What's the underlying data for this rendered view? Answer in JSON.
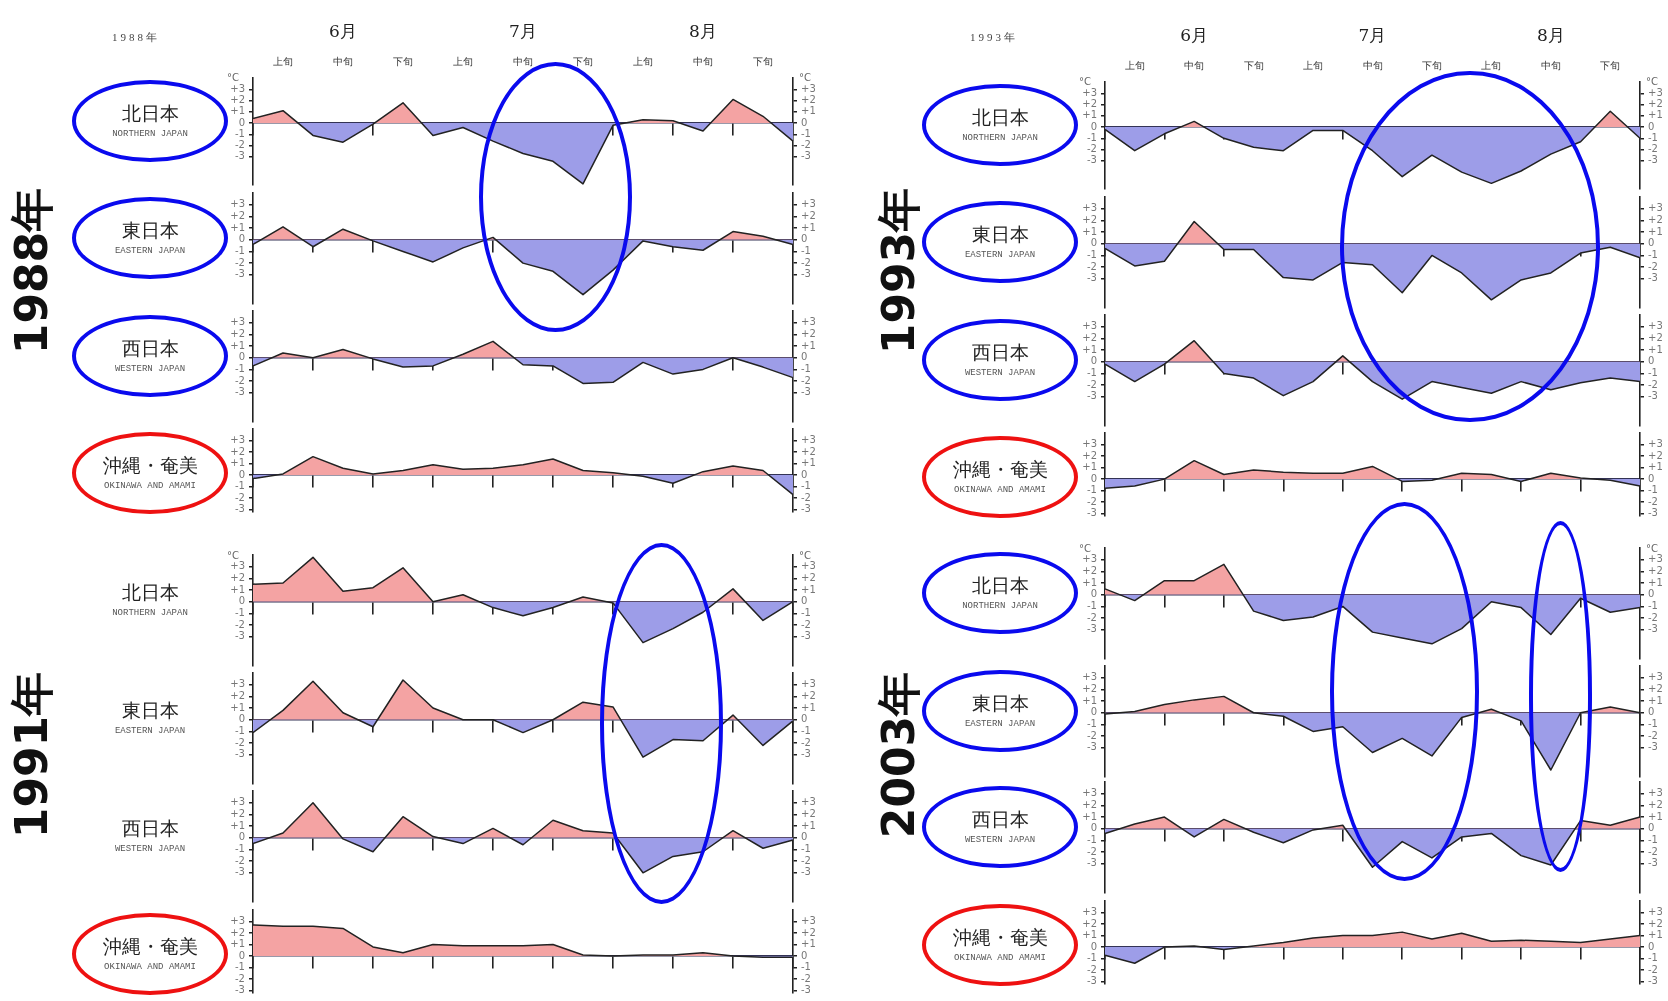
{
  "chart_data": [
    {
      "type": "area",
      "title": "北日本",
      "subtitle": "NORTHERN JAPAN",
      "ylabel": "°C",
      "y2label": "°C",
      "annotations": [
        "1988年",
        "1988年",
        "6月",
        "7月",
        "8月"
      ],
      "categories": [
        null,
        "上旬",
        null,
        "中旬",
        null,
        "下旬",
        null,
        "上旬",
        null,
        "中旬",
        null,
        "下旬",
        null,
        "上旬",
        null,
        "中旬",
        null,
        "下旬",
        null
      ],
      "ylim": [
        -5.5,
        4
      ],
      "yticks": [
        {
          "value": -3,
          "label": "-3"
        },
        {
          "value": -2,
          "label": "-2"
        },
        {
          "value": -1,
          "label": "-1"
        },
        {
          "value": 0,
          "label": "0"
        },
        {
          "value": 1,
          "label": "+1"
        },
        {
          "value": 2,
          "label": "+2"
        },
        {
          "value": 3,
          "label": "+3"
        }
      ],
      "y2lim": [
        -5.5,
        4
      ],
      "y2ticks": [
        {
          "value": -3,
          "label": "-3"
        },
        {
          "value": -2,
          "label": "-2"
        },
        {
          "value": -1,
          "label": "-1"
        },
        {
          "value": 0,
          "label": "0"
        },
        {
          "value": 1,
          "label": "+1"
        },
        {
          "value": 2,
          "label": "+2"
        },
        {
          "value": 3,
          "label": "+3"
        }
      ],
      "series": [
        {
          "values": [
            0.4,
            1.1,
            -1.1,
            -1.7,
            -0.1,
            1.8,
            -1.1,
            -0.4,
            -1.6,
            -2.7,
            -3.4,
            -5.4,
            -0.2,
            0.3,
            0.2,
            -0.7,
            2.1,
            0.6,
            -1.6
          ],
          "colors": [
            "#f4a3a3",
            "#f4a3a3",
            "#9d9de8",
            "#9d9de8",
            "#9d9de8",
            "#f4a3a3",
            "#9d9de8",
            "#9d9de8",
            "#9d9de8",
            "#9d9de8",
            "#9d9de8",
            "#9d9de8",
            "#9d9de8",
            "#f4a3a3",
            "#f4a3a3",
            "#9d9de8",
            "#f4a3a3",
            "#f4a3a3",
            "#9d9de8"
          ]
        }
      ]
    },
    {
      "type": "area",
      "title": "東日本",
      "subtitle": "EASTERN JAPAN",
      "categories": [
        null,
        null,
        null,
        null,
        null,
        null,
        null,
        null,
        null,
        null,
        null,
        null,
        null,
        null,
        null,
        null,
        null,
        null,
        null
      ],
      "ylim": [
        -5.5,
        4
      ],
      "yticks": [
        {
          "value": -3,
          "label": "-3"
        },
        {
          "value": -2,
          "label": "-2"
        },
        {
          "value": -1,
          "label": "-1"
        },
        {
          "value": 0,
          "label": "0"
        },
        {
          "value": 1,
          "label": "+1"
        },
        {
          "value": 2,
          "label": "+2"
        },
        {
          "value": 3,
          "label": "+3"
        }
      ],
      "y2lim": [
        -5.5,
        4
      ],
      "y2ticks": [
        {
          "value": -3,
          "label": "-3"
        },
        {
          "value": -2,
          "label": "-2"
        },
        {
          "value": -1,
          "label": "-1"
        },
        {
          "value": 0,
          "label": "0"
        },
        {
          "value": 1,
          "label": "+1"
        },
        {
          "value": 2,
          "label": "+2"
        },
        {
          "value": 3,
          "label": "+3"
        }
      ],
      "series": [
        {
          "values": [
            -0.4,
            1.1,
            -0.6,
            0.9,
            -0.1,
            -1.0,
            -1.9,
            -0.7,
            0.2,
            -2.0,
            -2.7,
            -4.7,
            -2.6,
            -0.1,
            -0.6,
            -0.9,
            0.7,
            0.3,
            -0.4
          ],
          "colors": [
            "#9d9de8",
            "#f4a3a3",
            "#9d9de8",
            "#f4a3a3",
            "#9d9de8",
            "#9d9de8",
            "#9d9de8",
            "#9d9de8",
            "#f4a3a3",
            "#9d9de8",
            "#9d9de8",
            "#9d9de8",
            "#9d9de8",
            "#9d9de8",
            "#9d9de8",
            "#9d9de8",
            "#f4a3a3",
            "#f4a3a3",
            "#9d9de8"
          ]
        }
      ]
    },
    {
      "type": "area",
      "title": "西日本",
      "subtitle": "WESTERN JAPAN",
      "categories": [
        null,
        null,
        null,
        null,
        null,
        null,
        null,
        null,
        null,
        null,
        null,
        null,
        null,
        null,
        null,
        null,
        null,
        null,
        null
      ],
      "ylim": [
        -5.5,
        4
      ],
      "yticks": [
        {
          "value": -3,
          "label": "-3"
        },
        {
          "value": -2,
          "label": "-2"
        },
        {
          "value": -1,
          "label": "-1"
        },
        {
          "value": 0,
          "label": "0"
        },
        {
          "value": 1,
          "label": "+1"
        },
        {
          "value": 2,
          "label": "+2"
        },
        {
          "value": 3,
          "label": "+3"
        }
      ],
      "y2lim": [
        -5.5,
        4
      ],
      "y2ticks": [
        {
          "value": -3,
          "label": "-3"
        },
        {
          "value": -2,
          "label": "-2"
        },
        {
          "value": -1,
          "label": "-1"
        },
        {
          "value": 0,
          "label": "0"
        },
        {
          "value": 1,
          "label": "+1"
        },
        {
          "value": 2,
          "label": "+2"
        },
        {
          "value": 3,
          "label": "+3"
        }
      ],
      "series": [
        {
          "values": [
            -0.7,
            0.4,
            0,
            0.7,
            -0.1,
            -0.8,
            -0.7,
            0.3,
            1.4,
            -0.6,
            -0.7,
            -2.2,
            -2.1,
            -0.4,
            -1.4,
            -1.0,
            0,
            -0.8,
            -1.7
          ],
          "colors": [
            "#9d9de8",
            "#f4a3a3",
            "#f4a3a3",
            "#f4a3a3",
            "#9d9de8",
            "#9d9de8",
            "#9d9de8",
            "#f4a3a3",
            "#f4a3a3",
            "#9d9de8",
            "#9d9de8",
            "#9d9de8",
            "#9d9de8",
            "#9d9de8",
            "#9d9de8",
            "#9d9de8",
            "#f4a3a3",
            "#9d9de8",
            "#9d9de8"
          ]
        }
      ]
    },
    {
      "type": "area",
      "title": "沖縄・奄美",
      "subtitle": "OKINAWA AND AMAMI",
      "categories": [
        null,
        null,
        null,
        null,
        null,
        null,
        null,
        null,
        null,
        null,
        null,
        null,
        null,
        null,
        null,
        null,
        null,
        null,
        null
      ],
      "ylim": [
        -3.2,
        4
      ],
      "yticks": [
        {
          "value": -3,
          "label": "-3"
        },
        {
          "value": -2,
          "label": "-2"
        },
        {
          "value": -1,
          "label": "-1"
        },
        {
          "value": 0,
          "label": "0"
        },
        {
          "value": 1,
          "label": "+1"
        },
        {
          "value": 2,
          "label": "+2"
        },
        {
          "value": 3,
          "label": "+3"
        }
      ],
      "y2lim": [
        -3.2,
        4
      ],
      "y2ticks": [
        {
          "value": -3,
          "label": "-3"
        },
        {
          "value": -2,
          "label": "-2"
        },
        {
          "value": -1,
          "label": "-1"
        },
        {
          "value": 0,
          "label": "0"
        },
        {
          "value": 1,
          "label": "+1"
        },
        {
          "value": 2,
          "label": "+2"
        },
        {
          "value": 3,
          "label": "+3"
        }
      ],
      "series": [
        {
          "values": [
            -0.3,
            0.1,
            1.6,
            0.6,
            0.1,
            0.4,
            0.9,
            0.5,
            0.6,
            0.9,
            1.4,
            0.4,
            0.2,
            -0.1,
            -0.7,
            0.3,
            0.8,
            0.4,
            -1.7
          ],
          "colors": [
            "#9d9de8",
            "#f4a3a3",
            "#f4a3a3",
            "#f4a3a3",
            "#f4a3a3",
            "#f4a3a3",
            "#f4a3a3",
            "#f4a3a3",
            "#f4a3a3",
            "#f4a3a3",
            "#f4a3a3",
            "#f4a3a3",
            "#f4a3a3",
            "#9d9de8",
            "#9d9de8",
            "#f4a3a3",
            "#f4a3a3",
            "#f4a3a3",
            "#9d9de8"
          ]
        }
      ]
    },
    {
      "type": "area",
      "title": "北日本",
      "subtitle": "NORTHERN JAPAN",
      "ylabel": "°C",
      "y2label": "°C",
      "annotations": [
        "1993年",
        "1993年",
        "6月",
        "7月",
        "8月"
      ],
      "categories": [
        null,
        "上旬",
        null,
        "中旬",
        null,
        "下旬",
        null,
        "上旬",
        null,
        "中旬",
        null,
        "下旬",
        null,
        "上旬",
        null,
        "中旬",
        null,
        "下旬",
        null
      ],
      "ylim": [
        -5.5,
        4
      ],
      "yticks": [
        {
          "value": -3,
          "label": "-3"
        },
        {
          "value": -2,
          "label": "-2"
        },
        {
          "value": -1,
          "label": "-1"
        },
        {
          "value": 0,
          "label": "0"
        },
        {
          "value": 1,
          "label": "+1"
        },
        {
          "value": 2,
          "label": "+2"
        },
        {
          "value": 3,
          "label": "+3"
        }
      ],
      "y2lim": [
        -5.5,
        4
      ],
      "y2ticks": [
        {
          "value": -3,
          "label": "-3"
        },
        {
          "value": -2,
          "label": "-2"
        },
        {
          "value": -1,
          "label": "-1"
        },
        {
          "value": 0,
          "label": "0"
        },
        {
          "value": 1,
          "label": "+1"
        },
        {
          "value": 2,
          "label": "+2"
        },
        {
          "value": 3,
          "label": "+3"
        }
      ],
      "series": [
        {
          "values": [
            -0.2,
            -2.1,
            -0.6,
            0.5,
            -1.0,
            -1.8,
            -2.1,
            -0.3,
            -0.3,
            -2.1,
            -4.4,
            -2.5,
            -4.0,
            -5.0,
            -3.9,
            -2.4,
            -1.3,
            1.4,
            -1.0
          ],
          "colors": [
            "#9d9de8",
            "#9d9de8",
            "#9d9de8",
            "#f4a3a3",
            "#9d9de8",
            "#9d9de8",
            "#9d9de8",
            "#9d9de8",
            "#9d9de8",
            "#9d9de8",
            "#9d9de8",
            "#9d9de8",
            "#9d9de8",
            "#9d9de8",
            "#9d9de8",
            "#9d9de8",
            "#9d9de8",
            "#f4a3a3",
            "#9d9de8"
          ]
        }
      ]
    },
    {
      "type": "area",
      "title": "東日本",
      "subtitle": "EASTERN JAPAN",
      "categories": [
        null,
        null,
        null,
        null,
        null,
        null,
        null,
        null,
        null,
        null,
        null,
        null,
        null,
        null,
        null,
        null,
        null,
        null,
        null
      ],
      "ylim": [
        -5.5,
        4
      ],
      "yticks": [
        {
          "value": -3,
          "label": "-3"
        },
        {
          "value": -2,
          "label": "-2"
        },
        {
          "value": -1,
          "label": "-1"
        },
        {
          "value": 0,
          "label": "0"
        },
        {
          "value": 1,
          "label": "+1"
        },
        {
          "value": 2,
          "label": "+2"
        },
        {
          "value": 3,
          "label": "+3"
        }
      ],
      "y2lim": [
        -5.5,
        4
      ],
      "y2ticks": [
        {
          "value": -3,
          "label": "-3"
        },
        {
          "value": -2,
          "label": "-2"
        },
        {
          "value": -1,
          "label": "-1"
        },
        {
          "value": 0,
          "label": "0"
        },
        {
          "value": 1,
          "label": "+1"
        },
        {
          "value": 2,
          "label": "+2"
        },
        {
          "value": 3,
          "label": "+3"
        }
      ],
      "series": [
        {
          "values": [
            -0.4,
            -1.9,
            -1.5,
            1.9,
            -0.5,
            -0.5,
            -2.9,
            -3.1,
            -1.6,
            -1.8,
            -4.2,
            -1.0,
            -2.5,
            -4.8,
            -3.1,
            -2.5,
            -0.8,
            -0.3,
            -1.2
          ],
          "colors": [
            "#9d9de8",
            "#9d9de8",
            "#9d9de8",
            "#f4a3a3",
            "#9d9de8",
            "#9d9de8",
            "#9d9de8",
            "#9d9de8",
            "#9d9de8",
            "#9d9de8",
            "#9d9de8",
            "#9d9de8",
            "#9d9de8",
            "#9d9de8",
            "#9d9de8",
            "#9d9de8",
            "#9d9de8",
            "#9d9de8",
            "#9d9de8"
          ]
        }
      ]
    },
    {
      "type": "area",
      "title": "西日本",
      "subtitle": "WESTERN JAPAN",
      "categories": [
        null,
        null,
        null,
        null,
        null,
        null,
        null,
        null,
        null,
        null,
        null,
        null,
        null,
        null,
        null,
        null,
        null,
        null,
        null
      ],
      "ylim": [
        -5.5,
        4
      ],
      "yticks": [
        {
          "value": -3,
          "label": "-3"
        },
        {
          "value": -2,
          "label": "-2"
        },
        {
          "value": -1,
          "label": "-1"
        },
        {
          "value": 0,
          "label": "0"
        },
        {
          "value": 1,
          "label": "+1"
        },
        {
          "value": 2,
          "label": "+2"
        },
        {
          "value": 3,
          "label": "+3"
        }
      ],
      "y2lim": [
        -5.5,
        4
      ],
      "y2ticks": [
        {
          "value": -3,
          "label": "-3"
        },
        {
          "value": -2,
          "label": "-2"
        },
        {
          "value": -1,
          "label": "-1"
        },
        {
          "value": 0,
          "label": "0"
        },
        {
          "value": 1,
          "label": "+1"
        },
        {
          "value": 2,
          "label": "+2"
        },
        {
          "value": 3,
          "label": "+3"
        }
      ],
      "series": [
        {
          "values": [
            -0.2,
            -1.7,
            -0.2,
            1.8,
            -1.0,
            -1.4,
            -2.9,
            -1.7,
            0.5,
            -1.7,
            -3.2,
            -1.7,
            -2.2,
            -2.7,
            -1.7,
            -2.4,
            -1.8,
            -1.4,
            -1.7
          ],
          "colors": [
            "#9d9de8",
            "#9d9de8",
            "#9d9de8",
            "#f4a3a3",
            "#9d9de8",
            "#9d9de8",
            "#9d9de8",
            "#9d9de8",
            "#f4a3a3",
            "#9d9de8",
            "#9d9de8",
            "#9d9de8",
            "#9d9de8",
            "#9d9de8",
            "#9d9de8",
            "#9d9de8",
            "#9d9de8",
            "#9d9de8",
            "#9d9de8"
          ]
        }
      ]
    },
    {
      "type": "area",
      "title": "沖縄・奄美",
      "subtitle": "OKINAWA AND AMAMI",
      "categories": [
        null,
        null,
        null,
        null,
        null,
        null,
        null,
        null,
        null,
        null,
        null,
        null,
        null,
        null,
        null,
        null,
        null,
        null,
        null
      ],
      "ylim": [
        -3.2,
        4
      ],
      "yticks": [
        {
          "value": -3,
          "label": "-3"
        },
        {
          "value": -2,
          "label": "-2"
        },
        {
          "value": -1,
          "label": "-1"
        },
        {
          "value": 0,
          "label": "0"
        },
        {
          "value": 1,
          "label": "+1"
        },
        {
          "value": 2,
          "label": "+2"
        },
        {
          "value": 3,
          "label": "+3"
        }
      ],
      "y2lim": [
        -3.2,
        4
      ],
      "y2ticks": [
        {
          "value": -3,
          "label": "-3"
        },
        {
          "value": -2,
          "label": "-2"
        },
        {
          "value": -1,
          "label": "-1"
        },
        {
          "value": 0,
          "label": "0"
        },
        {
          "value": 1,
          "label": "+1"
        },
        {
          "value": 2,
          "label": "+2"
        },
        {
          "value": 3,
          "label": "+3"
        }
      ],
      "series": [
        {
          "values": [
            -0.8,
            -0.6,
            0,
            1.6,
            0.4,
            0.8,
            0.6,
            0.5,
            0.5,
            1.1,
            -0.2,
            -0.1,
            0.5,
            0.4,
            -0.2,
            0.5,
            0.1,
            -0.1,
            -0.6
          ],
          "colors": [
            "#9d9de8",
            "#9d9de8",
            "#f4a3a3",
            "#f4a3a3",
            "#f4a3a3",
            "#f4a3a3",
            "#f4a3a3",
            "#f4a3a3",
            "#f4a3a3",
            "#f4a3a3",
            "#9d9de8",
            "#9d9de8",
            "#f4a3a3",
            "#f4a3a3",
            "#9d9de8",
            "#f4a3a3",
            "#f4a3a3",
            "#9d9de8",
            "#9d9de8"
          ]
        }
      ]
    },
    {
      "type": "area",
      "title": "北日本",
      "subtitle": "NORTHERN JAPAN",
      "ylabel": "°C",
      "y2label": "°C",
      "annotations": [
        "1991年"
      ],
      "categories": [
        null,
        null,
        null,
        null,
        null,
        null,
        null,
        null,
        null,
        null,
        null,
        null,
        null,
        null,
        null,
        null,
        null,
        null,
        null
      ],
      "ylim": [
        -5.5,
        4
      ],
      "yticks": [
        {
          "value": -3,
          "label": "-3"
        },
        {
          "value": -2,
          "label": "-2"
        },
        {
          "value": -1,
          "label": "-1"
        },
        {
          "value": 0,
          "label": "0"
        },
        {
          "value": 1,
          "label": "+1"
        },
        {
          "value": 2,
          "label": "+2"
        },
        {
          "value": 3,
          "label": "+3"
        }
      ],
      "y2lim": [
        -5.5,
        4
      ],
      "y2ticks": [
        {
          "value": -3,
          "label": "-3"
        },
        {
          "value": -2,
          "label": "-2"
        },
        {
          "value": -1,
          "label": "-1"
        },
        {
          "value": 0,
          "label": "0"
        },
        {
          "value": 1,
          "label": "+1"
        },
        {
          "value": 2,
          "label": "+2"
        },
        {
          "value": 3,
          "label": "+3"
        }
      ],
      "series": [
        {
          "values": [
            1.5,
            1.6,
            3.8,
            0.9,
            1.2,
            2.9,
            0,
            0.6,
            -0.5,
            -1.2,
            -0.5,
            0.4,
            -0.1,
            -3.5,
            -2.3,
            -0.9,
            1.1,
            -1.6,
            0
          ],
          "colors": [
            "#f4a3a3",
            "#f4a3a3",
            "#f4a3a3",
            "#f4a3a3",
            "#f4a3a3",
            "#f4a3a3",
            "#f4a3a3",
            "#f4a3a3",
            "#9d9de8",
            "#9d9de8",
            "#9d9de8",
            "#f4a3a3",
            "#9d9de8",
            "#9d9de8",
            "#9d9de8",
            "#9d9de8",
            "#f4a3a3",
            "#9d9de8",
            "#f4a3a3"
          ]
        }
      ]
    },
    {
      "type": "area",
      "title": "東日本",
      "subtitle": "EASTERN JAPAN",
      "categories": [
        null,
        null,
        null,
        null,
        null,
        null,
        null,
        null,
        null,
        null,
        null,
        null,
        null,
        null,
        null,
        null,
        null,
        null,
        null
      ],
      "ylim": [
        -5.5,
        4
      ],
      "yticks": [
        {
          "value": -3,
          "label": "-3"
        },
        {
          "value": -2,
          "label": "-2"
        },
        {
          "value": -1,
          "label": "-1"
        },
        {
          "value": 0,
          "label": "0"
        },
        {
          "value": 1,
          "label": "+1"
        },
        {
          "value": 2,
          "label": "+2"
        },
        {
          "value": 3,
          "label": "+3"
        }
      ],
      "y2lim": [
        -5.5,
        4
      ],
      "y2ticks": [
        {
          "value": -3,
          "label": "-3"
        },
        {
          "value": -2,
          "label": "-2"
        },
        {
          "value": -1,
          "label": "-1"
        },
        {
          "value": 0,
          "label": "0"
        },
        {
          "value": 1,
          "label": "+1"
        },
        {
          "value": 2,
          "label": "+2"
        },
        {
          "value": 3,
          "label": "+3"
        }
      ],
      "series": [
        {
          "values": [
            -1.1,
            0.8,
            3.3,
            0.6,
            -0.6,
            3.4,
            1.0,
            0,
            0,
            -1.1,
            0,
            1.5,
            1.1,
            -3.2,
            -1.7,
            -1.8,
            0.4,
            -2.2,
            -0.1
          ],
          "colors": [
            "#9d9de8",
            "#f4a3a3",
            "#f4a3a3",
            "#f4a3a3",
            "#9d9de8",
            "#f4a3a3",
            "#f4a3a3",
            "#f4a3a3",
            "#f4a3a3",
            "#9d9de8",
            "#f4a3a3",
            "#f4a3a3",
            "#f4a3a3",
            "#9d9de8",
            "#9d9de8",
            "#9d9de8",
            "#f4a3a3",
            "#9d9de8",
            "#9d9de8"
          ]
        }
      ]
    },
    {
      "type": "area",
      "title": "西日本",
      "subtitle": "WESTERN JAPAN",
      "categories": [
        null,
        null,
        null,
        null,
        null,
        null,
        null,
        null,
        null,
        null,
        null,
        null,
        null,
        null,
        null,
        null,
        null,
        null,
        null
      ],
      "ylim": [
        -5.5,
        4
      ],
      "yticks": [
        {
          "value": -3,
          "label": "-3"
        },
        {
          "value": -2,
          "label": "-2"
        },
        {
          "value": -1,
          "label": "-1"
        },
        {
          "value": 0,
          "label": "0"
        },
        {
          "value": 1,
          "label": "+1"
        },
        {
          "value": 2,
          "label": "+2"
        },
        {
          "value": 3,
          "label": "+3"
        }
      ],
      "y2lim": [
        -5.5,
        4
      ],
      "y2ticks": [
        {
          "value": -3,
          "label": "-3"
        },
        {
          "value": -2,
          "label": "-2"
        },
        {
          "value": -1,
          "label": "-1"
        },
        {
          "value": 0,
          "label": "0"
        },
        {
          "value": 1,
          "label": "+1"
        },
        {
          "value": 2,
          "label": "+2"
        },
        {
          "value": 3,
          "label": "+3"
        }
      ],
      "series": [
        {
          "values": [
            -0.5,
            0.4,
            3.0,
            -0.1,
            -1.2,
            1.8,
            0.1,
            -0.5,
            0.8,
            -0.6,
            1.5,
            0.6,
            0.4,
            -3.0,
            -1.6,
            -1.2,
            0.6,
            -0.9,
            -0.2
          ],
          "colors": [
            "#9d9de8",
            "#f4a3a3",
            "#f4a3a3",
            "#9d9de8",
            "#9d9de8",
            "#f4a3a3",
            "#f4a3a3",
            "#9d9de8",
            "#f4a3a3",
            "#9d9de8",
            "#f4a3a3",
            "#f4a3a3",
            "#f4a3a3",
            "#9d9de8",
            "#9d9de8",
            "#9d9de8",
            "#f4a3a3",
            "#9d9de8",
            "#9d9de8"
          ]
        }
      ]
    },
    {
      "type": "area",
      "title": "沖縄・奄美",
      "subtitle": "OKINAWA AND AMAMI",
      "categories": [
        null,
        null,
        null,
        null,
        null,
        null,
        null,
        null,
        null,
        null,
        null,
        null,
        null,
        null,
        null,
        null,
        null,
        null,
        null
      ],
      "ylim": [
        -3.2,
        4
      ],
      "yticks": [
        {
          "value": -3,
          "label": "-3"
        },
        {
          "value": -2,
          "label": "-2"
        },
        {
          "value": -1,
          "label": "-1"
        },
        {
          "value": 0,
          "label": "0"
        },
        {
          "value": 1,
          "label": "+1"
        },
        {
          "value": 2,
          "label": "+2"
        },
        {
          "value": 3,
          "label": "+3"
        }
      ],
      "y2lim": [
        -3.2,
        4
      ],
      "y2ticks": [
        {
          "value": -3,
          "label": "-3"
        },
        {
          "value": -2,
          "label": "-2"
        },
        {
          "value": -1,
          "label": "-1"
        },
        {
          "value": 0,
          "label": "0"
        },
        {
          "value": 1,
          "label": "+1"
        },
        {
          "value": 2,
          "label": "+2"
        },
        {
          "value": 3,
          "label": "+3"
        }
      ],
      "series": [
        {
          "values": [
            2.7,
            2.6,
            2.6,
            2.4,
            0.8,
            0.3,
            1.0,
            0.9,
            0.9,
            0.9,
            1.0,
            0.1,
            0,
            0.1,
            0.1,
            0.3,
            0,
            -0.1,
            -0.1
          ],
          "colors": [
            "#f4a3a3",
            "#f4a3a3",
            "#f4a3a3",
            "#f4a3a3",
            "#f4a3a3",
            "#f4a3a3",
            "#f4a3a3",
            "#f4a3a3",
            "#f4a3a3",
            "#f4a3a3",
            "#f4a3a3",
            "#f4a3a3",
            "#f4a3a3",
            "#f4a3a3",
            "#f4a3a3",
            "#f4a3a3",
            "#f4a3a3",
            "#9d9de8",
            "#9d9de8"
          ]
        }
      ]
    },
    {
      "type": "area",
      "title": "北日本",
      "subtitle": "NORTHERN JAPAN",
      "ylabel": "°C",
      "y2label": "°C",
      "annotations": [
        "2003年"
      ],
      "categories": [
        null,
        null,
        null,
        null,
        null,
        null,
        null,
        null,
        null,
        null,
        null,
        null,
        null,
        null,
        null,
        null,
        null,
        null,
        null
      ],
      "ylim": [
        -5.5,
        4
      ],
      "yticks": [
        {
          "value": -3,
          "label": "-3"
        },
        {
          "value": -2,
          "label": "-2"
        },
        {
          "value": -1,
          "label": "-1"
        },
        {
          "value": 0,
          "label": "0"
        },
        {
          "value": 1,
          "label": "+1"
        },
        {
          "value": 2,
          "label": "+2"
        },
        {
          "value": 3,
          "label": "+3"
        }
      ],
      "y2lim": [
        -5.5,
        4
      ],
      "y2ticks": [
        {
          "value": -3,
          "label": "-3"
        },
        {
          "value": -2,
          "label": "-2"
        },
        {
          "value": -1,
          "label": "-1"
        },
        {
          "value": 0,
          "label": "0"
        },
        {
          "value": 1,
          "label": "+1"
        },
        {
          "value": 2,
          "label": "+2"
        },
        {
          "value": 3,
          "label": "+3"
        }
      ],
      "series": [
        {
          "values": [
            0.5,
            -0.5,
            1.2,
            1.2,
            2.6,
            -1.4,
            -2.2,
            -1.9,
            -1.0,
            -3.2,
            -3.7,
            -4.2,
            -2.9,
            -0.6,
            -1.1,
            -3.4,
            -0.3,
            -1.5,
            -1.1
          ],
          "colors": [
            "#f4a3a3",
            "#9d9de8",
            "#f4a3a3",
            "#f4a3a3",
            "#f4a3a3",
            "#9d9de8",
            "#9d9de8",
            "#9d9de8",
            "#9d9de8",
            "#9d9de8",
            "#9d9de8",
            "#9d9de8",
            "#9d9de8",
            "#9d9de8",
            "#9d9de8",
            "#9d9de8",
            "#9d9de8",
            "#9d9de8",
            "#9d9de8"
          ]
        }
      ]
    },
    {
      "type": "area",
      "title": "東日本",
      "subtitle": "EASTERN JAPAN",
      "categories": [
        null,
        null,
        null,
        null,
        null,
        null,
        null,
        null,
        null,
        null,
        null,
        null,
        null,
        null,
        null,
        null,
        null,
        null,
        null
      ],
      "ylim": [
        -5.5,
        4
      ],
      "yticks": [
        {
          "value": -3,
          "label": "-3"
        },
        {
          "value": -2,
          "label": "-2"
        },
        {
          "value": -1,
          "label": "-1"
        },
        {
          "value": 0,
          "label": "0"
        },
        {
          "value": 1,
          "label": "+1"
        },
        {
          "value": 2,
          "label": "+2"
        },
        {
          "value": 3,
          "label": "+3"
        }
      ],
      "y2lim": [
        -5.5,
        4
      ],
      "y2ticks": [
        {
          "value": -3,
          "label": "-3"
        },
        {
          "value": -2,
          "label": "-2"
        },
        {
          "value": -1,
          "label": "-1"
        },
        {
          "value": 0,
          "label": "0"
        },
        {
          "value": 1,
          "label": "+1"
        },
        {
          "value": 2,
          "label": "+2"
        },
        {
          "value": 3,
          "label": "+3"
        }
      ],
      "series": [
        {
          "values": [
            -0.1,
            0.1,
            0.7,
            1.1,
            1.4,
            0,
            -0.3,
            -1.6,
            -1.2,
            -3.4,
            -2.2,
            -3.7,
            -0.4,
            0.3,
            -0.7,
            -4.9,
            0,
            0.5,
            0
          ],
          "colors": [
            "#9d9de8",
            "#f4a3a3",
            "#f4a3a3",
            "#f4a3a3",
            "#f4a3a3",
            "#f4a3a3",
            "#9d9de8",
            "#9d9de8",
            "#9d9de8",
            "#9d9de8",
            "#9d9de8",
            "#9d9de8",
            "#9d9de8",
            "#f4a3a3",
            "#9d9de8",
            "#9d9de8",
            "#f4a3a3",
            "#f4a3a3",
            "#f4a3a3"
          ]
        }
      ]
    },
    {
      "type": "area",
      "title": "西日本",
      "subtitle": "WESTERN JAPAN",
      "categories": [
        null,
        null,
        null,
        null,
        null,
        null,
        null,
        null,
        null,
        null,
        null,
        null,
        null,
        null,
        null,
        null,
        null,
        null,
        null
      ],
      "ylim": [
        -5.5,
        4
      ],
      "yticks": [
        {
          "value": -3,
          "label": "-3"
        },
        {
          "value": -2,
          "label": "-2"
        },
        {
          "value": -1,
          "label": "-1"
        },
        {
          "value": 0,
          "label": "0"
        },
        {
          "value": 1,
          "label": "+1"
        },
        {
          "value": 2,
          "label": "+2"
        },
        {
          "value": 3,
          "label": "+3"
        }
      ],
      "y2lim": [
        -5.5,
        4
      ],
      "y2ticks": [
        {
          "value": -3,
          "label": "-3"
        },
        {
          "value": -2,
          "label": "-2"
        },
        {
          "value": -1,
          "label": "-1"
        },
        {
          "value": 0,
          "label": "0"
        },
        {
          "value": 1,
          "label": "+1"
        },
        {
          "value": 2,
          "label": "+2"
        },
        {
          "value": 3,
          "label": "+3"
        }
      ],
      "series": [
        {
          "values": [
            -0.4,
            0.4,
            1.0,
            -0.7,
            0.8,
            -0.3,
            -1.2,
            -0.1,
            0.3,
            -3.3,
            -1.1,
            -2.5,
            -0.7,
            -0.4,
            -2.3,
            -3.1,
            0.7,
            0.3,
            1.0
          ],
          "colors": [
            "#9d9de8",
            "#f4a3a3",
            "#f4a3a3",
            "#9d9de8",
            "#f4a3a3",
            "#9d9de8",
            "#9d9de8",
            "#9d9de8",
            "#f4a3a3",
            "#9d9de8",
            "#9d9de8",
            "#9d9de8",
            "#9d9de8",
            "#9d9de8",
            "#9d9de8",
            "#9d9de8",
            "#f4a3a3",
            "#f4a3a3",
            "#f4a3a3"
          ]
        }
      ]
    },
    {
      "type": "area",
      "title": "沖縄・奄美",
      "subtitle": "OKINAWA AND AMAMI",
      "categories": [
        null,
        null,
        null,
        null,
        null,
        null,
        null,
        null,
        null,
        null,
        null,
        null,
        null,
        null,
        null,
        null,
        null,
        null,
        null
      ],
      "ylim": [
        -3.2,
        4
      ],
      "yticks": [
        {
          "value": -3,
          "label": "-3"
        },
        {
          "value": -2,
          "label": "-2"
        },
        {
          "value": -1,
          "label": "-1"
        },
        {
          "value": 0,
          "label": "0"
        },
        {
          "value": 1,
          "label": "+1"
        },
        {
          "value": 2,
          "label": "+2"
        },
        {
          "value": 3,
          "label": "+3"
        }
      ],
      "y2lim": [
        -3.2,
        4
      ],
      "y2ticks": [
        {
          "value": -3,
          "label": "-3"
        },
        {
          "value": -2,
          "label": "-2"
        },
        {
          "value": -1,
          "label": "-1"
        },
        {
          "value": 0,
          "label": "0"
        },
        {
          "value": 1,
          "label": "+1"
        },
        {
          "value": 2,
          "label": "+2"
        },
        {
          "value": 3,
          "label": "+3"
        }
      ],
      "series": [
        {
          "values": [
            -0.7,
            -1.4,
            0,
            0.1,
            -0.2,
            0.1,
            0.4,
            0.8,
            1.0,
            1.0,
            1.3,
            0.7,
            1.2,
            0.5,
            0.6,
            0.5,
            0.4,
            0.7,
            1.0
          ],
          "colors": [
            "#9d9de8",
            "#9d9de8",
            "#f4a3a3",
            "#f4a3a3",
            "#9d9de8",
            "#f4a3a3",
            "#f4a3a3",
            "#f4a3a3",
            "#f4a3a3",
            "#f4a3a3",
            "#f4a3a3",
            "#f4a3a3",
            "#f4a3a3",
            "#f4a3a3",
            "#f4a3a3",
            "#f4a3a3",
            "#f4a3a3",
            "#f4a3a3",
            "#f4a3a3"
          ]
        }
      ]
    }
  ]
}
